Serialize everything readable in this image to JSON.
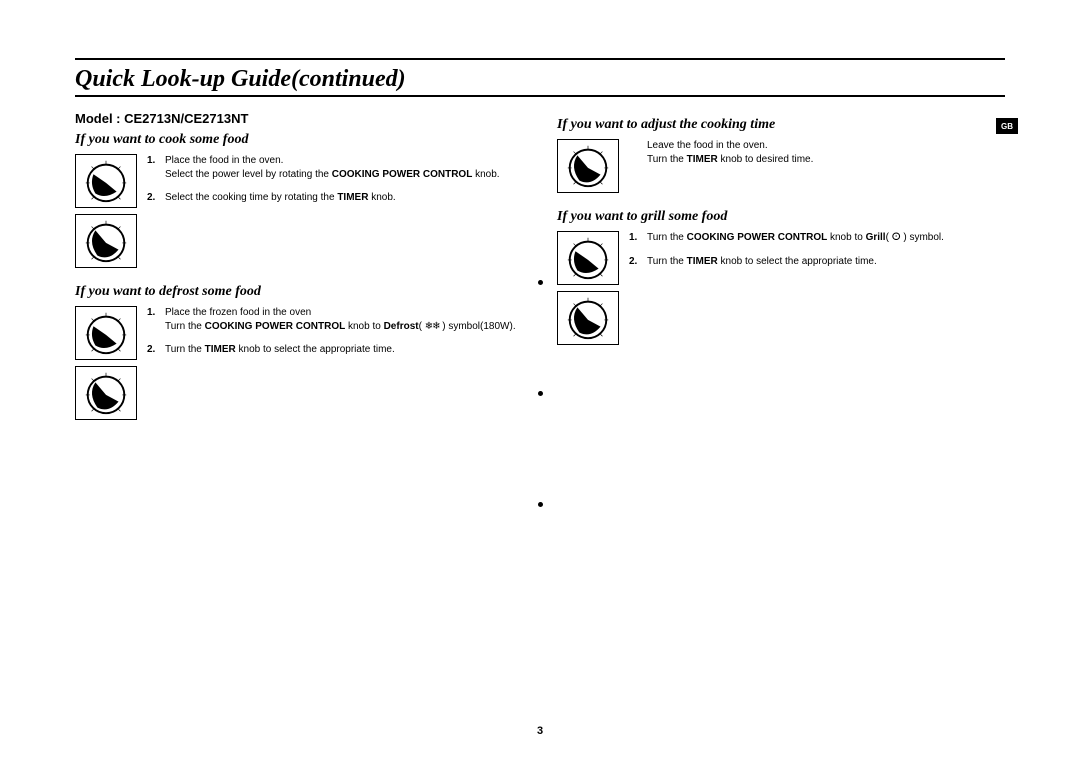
{
  "title": "Quick Look-up Guide(continued)",
  "model": "Model : CE2713N/CE2713NT",
  "page_number": "3",
  "lang_tab": "GB",
  "left": {
    "sections": [
      {
        "heading": "If you want to cook some food",
        "steps": [
          {
            "num": "1.",
            "html": "Place the food in the oven.<br>Select the power level by rotating the <b>COOKING POWER CONTROL</b> knob."
          },
          {
            "num": "2.",
            "html": "Select the cooking time by rotating the <b>TIMER</b> knob."
          }
        ]
      },
      {
        "heading": "If you want to defrost some food",
        "steps": [
          {
            "num": "1.",
            "html": "Place the frozen food in the oven<br>Turn the <b>COOKING POWER CONTROL</b> knob to <b>Defrost</b>( <span style='letter-spacing:-1px'>❄❄</span> ) symbol(180W)."
          },
          {
            "num": "2.",
            "html": "Turn the <b>TIMER</b> knob to select the appropriate time."
          }
        ]
      }
    ]
  },
  "right": {
    "sections": [
      {
        "heading": "If you want to adjust the cooking time",
        "single_dial": true,
        "steps": [
          {
            "num": "",
            "html": "Leave the food in the oven.<br>Turn the <b>TIMER</b> knob to desired time."
          }
        ]
      },
      {
        "heading": "If you want to grill some food",
        "steps": [
          {
            "num": "1.",
            "html": "Turn the <b>COOKING POWER CONTROL</b> knob to <b>Grill</b>( <span style='font-family:monospace'>ⵙ</span> ) symbol."
          },
          {
            "num": "2.",
            "html": "Turn the <b>TIMER</b> knob to select the appropriate time."
          }
        ]
      }
    ]
  },
  "dial_style": {
    "border_color": "#000000",
    "bg": "#ffffff",
    "pointer_color": "#000000"
  }
}
